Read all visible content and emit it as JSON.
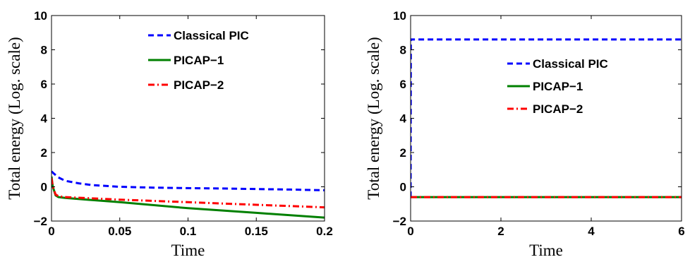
{
  "chart_data": [
    {
      "type": "line",
      "xlabel": "Time",
      "ylabel": "Total energy (Log. scale)",
      "xlim": [
        0,
        0.2
      ],
      "ylim": [
        -2,
        10
      ],
      "xticks": [
        0,
        0.05,
        0.1,
        0.15,
        0.2
      ],
      "xtick_labels": [
        "0",
        "0.05",
        "0.1",
        "0.15",
        "0.2"
      ],
      "yticks": [
        -2,
        0,
        2,
        4,
        6,
        8,
        10
      ],
      "ytick_labels": [
        "−2",
        "0",
        "2",
        "4",
        "6",
        "8",
        "10"
      ],
      "grid": false,
      "legend_position": "top-right",
      "series": [
        {
          "name": "Classical PIC",
          "color": "#0000ff",
          "style": "dashed",
          "x": [
            0,
            0.002,
            0.005,
            0.01,
            0.02,
            0.03,
            0.05,
            0.075,
            0.1,
            0.125,
            0.15,
            0.175,
            0.2
          ],
          "y": [
            0.9,
            0.75,
            0.55,
            0.35,
            0.2,
            0.1,
            0.0,
            -0.05,
            -0.08,
            -0.1,
            -0.13,
            -0.16,
            -0.2
          ]
        },
        {
          "name": "PICAP−1",
          "color": "#008000",
          "style": "solid",
          "x": [
            0,
            0.001,
            0.003,
            0.005,
            0.01,
            0.05,
            0.1,
            0.15,
            0.2
          ],
          "y": [
            0.6,
            0.0,
            -0.5,
            -0.6,
            -0.65,
            -0.9,
            -1.25,
            -1.52,
            -1.8
          ]
        },
        {
          "name": "PICAP−2",
          "color": "#ff0000",
          "style": "dashdot",
          "x": [
            0,
            0.001,
            0.003,
            0.005,
            0.01,
            0.05,
            0.1,
            0.15,
            0.2
          ],
          "y": [
            0.5,
            0.0,
            -0.45,
            -0.55,
            -0.6,
            -0.75,
            -0.9,
            -1.05,
            -1.2
          ]
        }
      ]
    },
    {
      "type": "line",
      "xlabel": "Time",
      "ylabel": "Total energy (Log. scale)",
      "xlim": [
        0,
        6
      ],
      "ylim": [
        -2,
        10
      ],
      "xticks": [
        0,
        2,
        4,
        6
      ],
      "xtick_labels": [
        "0",
        "2",
        "4",
        "6"
      ],
      "yticks": [
        -2,
        0,
        2,
        4,
        6,
        8,
        10
      ],
      "ytick_labels": [
        "−2",
        "0",
        "2",
        "4",
        "6",
        "8",
        "10"
      ],
      "grid": false,
      "legend_position": "right",
      "series": [
        {
          "name": "Classical PIC",
          "color": "#0000ff",
          "style": "dashed",
          "x": [
            0,
            0.005,
            0.01,
            6
          ],
          "y": [
            -0.6,
            8.6,
            8.6,
            8.6
          ]
        },
        {
          "name": "PICAP−1",
          "color": "#008000",
          "style": "solid",
          "x": [
            0,
            6
          ],
          "y": [
            -0.6,
            -0.6
          ]
        },
        {
          "name": "PICAP−2",
          "color": "#ff0000",
          "style": "dashdot",
          "x": [
            0,
            6
          ],
          "y": [
            -0.6,
            -0.6
          ]
        }
      ]
    }
  ]
}
